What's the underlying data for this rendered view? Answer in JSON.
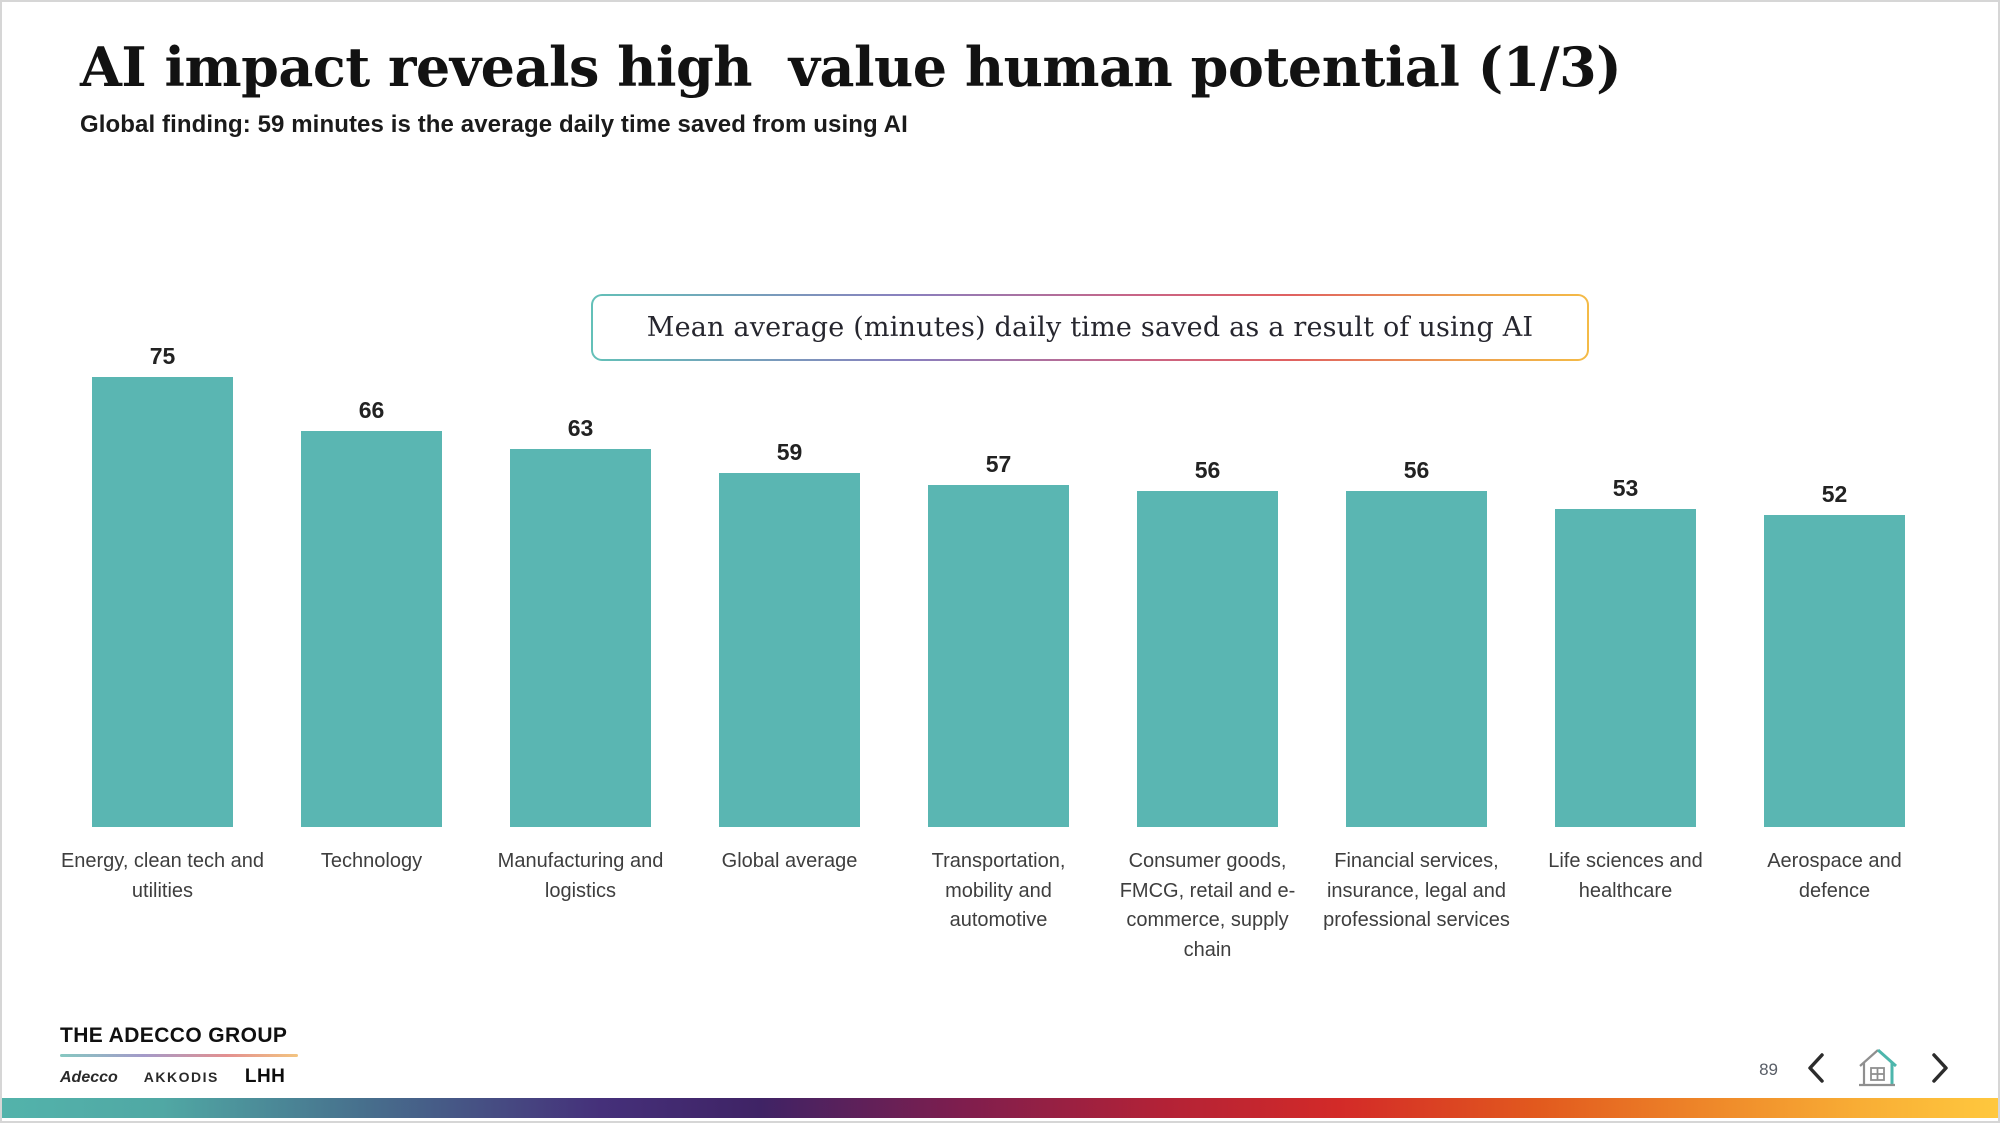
{
  "slide": {
    "title": "AI impact reveals high  value human potential (1/3)",
    "subtitle": "Global finding: 59 minutes is the average daily time saved from using AI"
  },
  "chart_data": {
    "type": "bar",
    "title": "Mean average (minutes) daily time saved as a result of using AI",
    "categories": [
      "Energy, clean tech and utilities",
      "Technology",
      "Manufacturing and logistics",
      "Global average",
      "Transportation, mobility and automotive",
      "Consumer goods, FMCG, retail and e-commerce, supply chain",
      "Financial services, insurance, legal and professional services",
      "Life sciences and healthcare",
      "Aerospace and defence"
    ],
    "values": [
      75,
      66,
      63,
      59,
      57,
      56,
      56,
      53,
      52
    ],
    "ylim": [
      0,
      75
    ],
    "value_labels_shown": true,
    "axes_shown": false,
    "grid": false,
    "legend": "none",
    "bar_color": "#5AB6B2"
  },
  "footer": {
    "brand": "THE ADECCO GROUP",
    "sub_brands": [
      "Adecco",
      "AKKODIS",
      "LHH"
    ],
    "page_number": "89"
  },
  "colors": {
    "bar_teal": "#5AB6B2",
    "accent_teal": "#4DB6AC",
    "rainbow_gradient": [
      "#53B3AB",
      "#45307A",
      "#B22237",
      "#D32A28",
      "#EF8A2A",
      "#FFC83E"
    ]
  }
}
